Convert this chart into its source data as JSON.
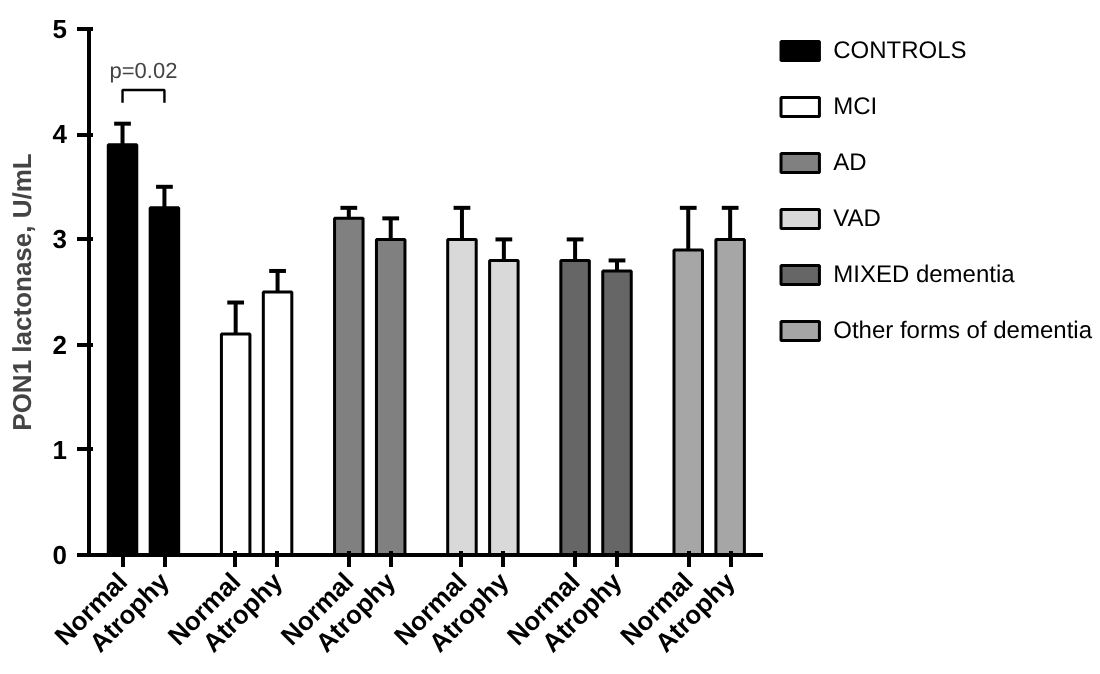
{
  "chart_data": {
    "type": "bar",
    "ylabel": "PON1 lactonase, U/mL",
    "categories": [
      "Normal",
      "Atrophy",
      "Normal",
      "Atrophy",
      "Normal",
      "Atrophy",
      "Normal",
      "Atrophy",
      "Normal",
      "Atrophy",
      "Normal",
      "Atrophy"
    ],
    "series": [
      {
        "name": "CONTROLS",
        "color": "#000000",
        "values": [
          3.9,
          3.3,
          null,
          null,
          null,
          null,
          null,
          null,
          null,
          null,
          null,
          null
        ],
        "errors": [
          0.2,
          0.2,
          null,
          null,
          null,
          null,
          null,
          null,
          null,
          null,
          null,
          null
        ]
      },
      {
        "name": "MCI",
        "color": "#ffffff",
        "values": [
          null,
          null,
          2.1,
          2.5,
          null,
          null,
          null,
          null,
          null,
          null,
          null,
          null
        ],
        "errors": [
          null,
          null,
          0.3,
          0.2,
          null,
          null,
          null,
          null,
          null,
          null,
          null,
          null
        ]
      },
      {
        "name": "AD",
        "color": "#808080",
        "values": [
          null,
          null,
          null,
          null,
          3.2,
          3.0,
          null,
          null,
          null,
          null,
          null,
          null
        ],
        "errors": [
          null,
          null,
          null,
          null,
          0.1,
          0.2,
          null,
          null,
          null,
          null,
          null,
          null
        ]
      },
      {
        "name": "VAD",
        "color": "#d9d9d9",
        "values": [
          null,
          null,
          null,
          null,
          null,
          null,
          3.0,
          2.8,
          null,
          null,
          null,
          null
        ],
        "errors": [
          null,
          null,
          null,
          null,
          null,
          null,
          0.3,
          0.2,
          null,
          null,
          null,
          null
        ]
      },
      {
        "name": "MIXED dementia",
        "color": "#666666",
        "values": [
          null,
          null,
          null,
          null,
          null,
          null,
          null,
          null,
          2.8,
          2.7,
          null,
          null
        ],
        "errors": [
          null,
          null,
          null,
          null,
          null,
          null,
          null,
          null,
          0.2,
          0.1,
          null,
          null
        ]
      },
      {
        "name": "Other forms of dementia",
        "color": "#a6a6a6",
        "values": [
          null,
          null,
          null,
          null,
          null,
          null,
          null,
          null,
          null,
          null,
          2.9,
          3.0
        ],
        "errors": [
          null,
          null,
          null,
          null,
          null,
          null,
          null,
          null,
          null,
          null,
          0.4,
          0.3
        ]
      }
    ],
    "annotations": [
      "p=0.02"
    ],
    "ylim": [
      0,
      5
    ],
    "yticks": [
      0,
      1,
      2,
      3,
      4,
      5
    ],
    "legend": "right"
  }
}
